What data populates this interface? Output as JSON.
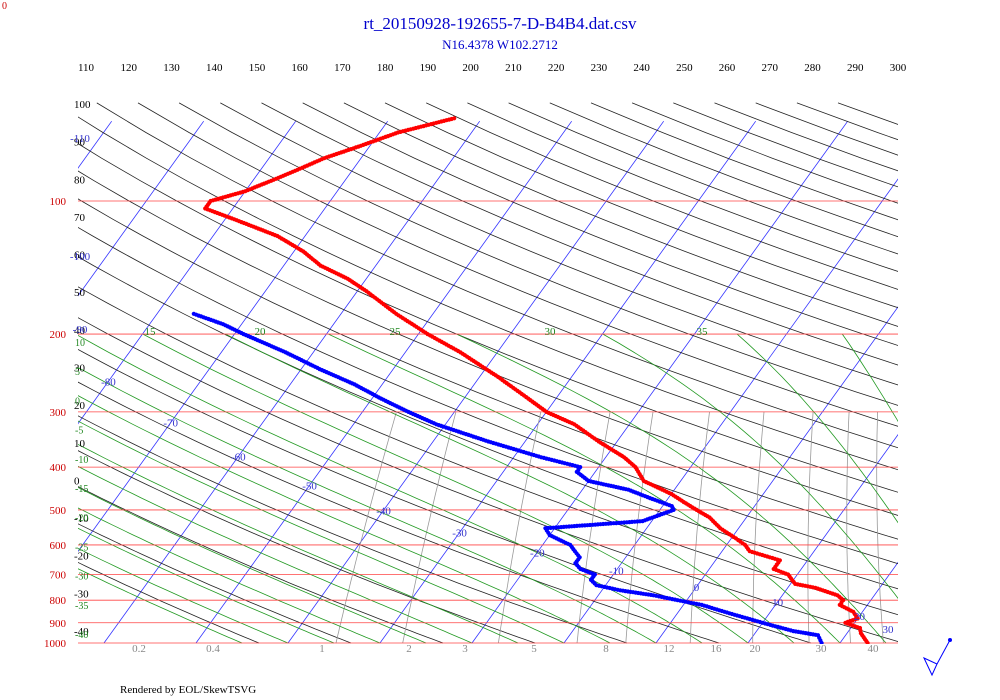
{
  "chart_data": {
    "type": "skew-t",
    "title": "rt_20150928-192655-7-D-B4B4.dat.csv",
    "subtitle": "N16.4378 W102.2712",
    "footer": "Rendered by EOL/SkewTSVG",
    "corner_label": "0",
    "pressure_axis": {
      "label_color": "#cc0000",
      "ticks": [
        100,
        200,
        300,
        400,
        500,
        600,
        700,
        800,
        900,
        1000
      ],
      "range": [
        1000,
        100
      ]
    },
    "top_axis": {
      "ticks": [
        110,
        120,
        130,
        140,
        150,
        160,
        170,
        180,
        190,
        200,
        210,
        220,
        230,
        240,
        250,
        260,
        270,
        280,
        290,
        300
      ]
    },
    "left_axis_values": [
      100,
      90,
      80,
      70,
      60,
      50,
      40,
      30,
      20,
      10,
      0,
      -10,
      -20,
      -30,
      -40
    ],
    "isotherm_labels": [
      -110,
      -100,
      -90,
      -80,
      -70,
      -60,
      -50,
      -40,
      -30,
      -20,
      -10,
      0,
      10,
      20,
      30
    ],
    "mixing_ratio_labels": [
      "0.2",
      "0.4",
      "1",
      "2",
      "3",
      "5",
      "8",
      "12",
      "16",
      "20",
      "30",
      "40"
    ],
    "moist_adiabat_labels": [
      15,
      20,
      25,
      30,
      35
    ],
    "moist_left_labels": [
      10,
      5,
      0,
      -5,
      -10,
      -15,
      -20,
      -25,
      -30,
      -35,
      -40
    ],
    "series": [
      {
        "name": "Temperature",
        "color": "#ff0000",
        "points": [
          [
            1000,
            23
          ],
          [
            950,
            21.5
          ],
          [
            925,
            21
          ],
          [
            900,
            19
          ],
          [
            880,
            20
          ],
          [
            850,
            19
          ],
          [
            820,
            17
          ],
          [
            800,
            17
          ],
          [
            780,
            16
          ],
          [
            750,
            13
          ],
          [
            735,
            10.5
          ],
          [
            700,
            9
          ],
          [
            680,
            7
          ],
          [
            650,
            7
          ],
          [
            620,
            3
          ],
          [
            600,
            2
          ],
          [
            580,
            0.5
          ],
          [
            550,
            -2
          ],
          [
            520,
            -4
          ],
          [
            500,
            -6
          ],
          [
            480,
            -8
          ],
          [
            460,
            -10
          ],
          [
            430,
            -14
          ],
          [
            400,
            -16
          ],
          [
            380,
            -18
          ],
          [
            350,
            -22
          ],
          [
            320,
            -26
          ],
          [
            300,
            -30
          ],
          [
            280,
            -33
          ],
          [
            250,
            -38
          ],
          [
            220,
            -44
          ],
          [
            200,
            -49
          ],
          [
            180,
            -54
          ],
          [
            160,
            -59
          ],
          [
            150,
            -62
          ],
          [
            140,
            -66
          ],
          [
            130,
            -69
          ],
          [
            120,
            -73
          ],
          [
            110,
            -79
          ],
          [
            104,
            -83
          ],
          [
            100,
            -83
          ],
          [
            95,
            -80
          ],
          [
            90,
            -78
          ],
          [
            85,
            -76
          ],
          [
            80,
            -74
          ],
          [
            75,
            -71
          ],
          [
            70,
            -68
          ],
          [
            65,
            -63
          ]
        ]
      },
      {
        "name": "Dewpoint",
        "color": "#0000ff",
        "points": [
          [
            1000,
            18
          ],
          [
            960,
            17
          ],
          [
            940,
            14
          ],
          [
            900,
            10
          ],
          [
            860,
            6
          ],
          [
            840,
            4
          ],
          [
            820,
            2
          ],
          [
            800,
            -1
          ],
          [
            780,
            -4
          ],
          [
            760,
            -8
          ],
          [
            740,
            -11
          ],
          [
            720,
            -12
          ],
          [
            700,
            -12
          ],
          [
            680,
            -14
          ],
          [
            660,
            -15
          ],
          [
            640,
            -15
          ],
          [
            620,
            -16
          ],
          [
            600,
            -17
          ],
          [
            570,
            -20
          ],
          [
            550,
            -21
          ],
          [
            530,
            -11
          ],
          [
            500,
            -8.5
          ],
          [
            490,
            -9
          ],
          [
            470,
            -12
          ],
          [
            450,
            -15
          ],
          [
            430,
            -20
          ],
          [
            410,
            -22
          ],
          [
            400,
            -22
          ],
          [
            380,
            -27
          ],
          [
            350,
            -34
          ],
          [
            320,
            -41
          ],
          [
            300,
            -45
          ],
          [
            280,
            -49
          ],
          [
            260,
            -53
          ],
          [
            240,
            -58
          ],
          [
            220,
            -63
          ],
          [
            200,
            -69
          ],
          [
            190,
            -72
          ],
          [
            180,
            -76
          ]
        ]
      }
    ]
  }
}
